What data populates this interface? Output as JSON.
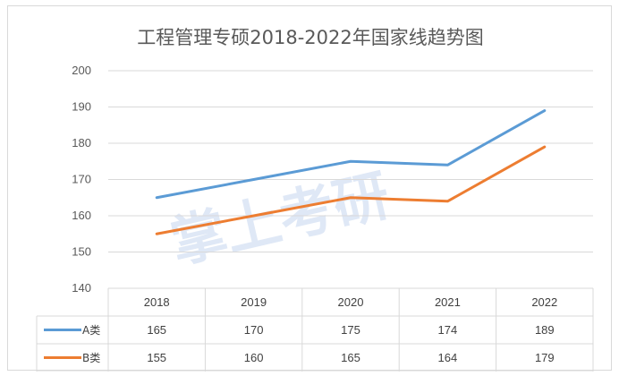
{
  "chart_data": {
    "type": "line",
    "title": "工程管理专硕2018-2022年国家线趋势图",
    "categories": [
      "2018",
      "2019",
      "2020",
      "2021",
      "2022"
    ],
    "series": [
      {
        "name": "A类",
        "values": [
          165,
          170,
          175,
          174,
          189
        ],
        "color": "#5b9bd5"
      },
      {
        "name": "B类",
        "values": [
          155,
          160,
          165,
          164,
          179
        ],
        "color": "#ed7d31"
      }
    ],
    "xlabel": "",
    "ylabel": "",
    "ylim": [
      140,
      200
    ],
    "yticks": [
      140,
      150,
      160,
      170,
      180,
      190,
      200
    ],
    "grid": true,
    "legend": "data-table",
    "data_table": true
  },
  "watermark": {
    "text": "掌上考研"
  }
}
